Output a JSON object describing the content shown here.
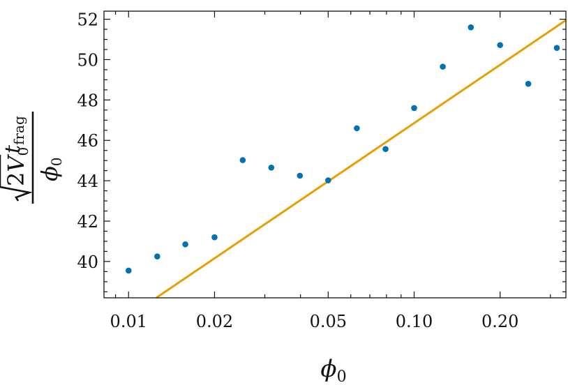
{
  "chart_data": {
    "type": "scatter",
    "xscale": "log",
    "xlim": [
      0.0082,
      0.34
    ],
    "ylim": [
      38.2,
      52.4
    ],
    "xticks": [
      0.01,
      0.02,
      0.05,
      0.1,
      0.2
    ],
    "xtick_labels": [
      "0.01",
      "0.02",
      "0.05",
      "0.10",
      "0.20"
    ],
    "yticks": [
      40,
      42,
      44,
      46,
      48,
      50,
      52
    ],
    "ytick_labels": [
      "40",
      "42",
      "44",
      "46",
      "48",
      "50",
      "52"
    ],
    "xlabel": "ϕ0",
    "ylabel": "√(2V0) t_frag / ϕ0",
    "grid": false,
    "series": [
      {
        "kind": "scatter",
        "color": "#0072b2",
        "points": [
          {
            "x": 0.01,
            "y": 39.55
          },
          {
            "x": 0.0126,
            "y": 40.25
          },
          {
            "x": 0.0158,
            "y": 40.85
          },
          {
            "x": 0.02,
            "y": 41.2
          },
          {
            "x": 0.0251,
            "y": 45.02
          },
          {
            "x": 0.0316,
            "y": 44.65
          },
          {
            "x": 0.0398,
            "y": 44.25
          },
          {
            "x": 0.05,
            "y": 44.02
          },
          {
            "x": 0.063,
            "y": 46.6
          },
          {
            "x": 0.0794,
            "y": 45.57
          },
          {
            "x": 0.1,
            "y": 47.6
          },
          {
            "x": 0.126,
            "y": 49.65
          },
          {
            "x": 0.158,
            "y": 51.6
          },
          {
            "x": 0.2,
            "y": 50.72
          },
          {
            "x": 0.251,
            "y": 48.8
          },
          {
            "x": 0.316,
            "y": 50.58
          }
        ]
      },
      {
        "kind": "fit-line",
        "color": "#e69f00",
        "points": [
          {
            "x": 0.0125,
            "y": 38.2
          },
          {
            "x": 0.34,
            "y": 51.95
          }
        ]
      }
    ]
  }
}
